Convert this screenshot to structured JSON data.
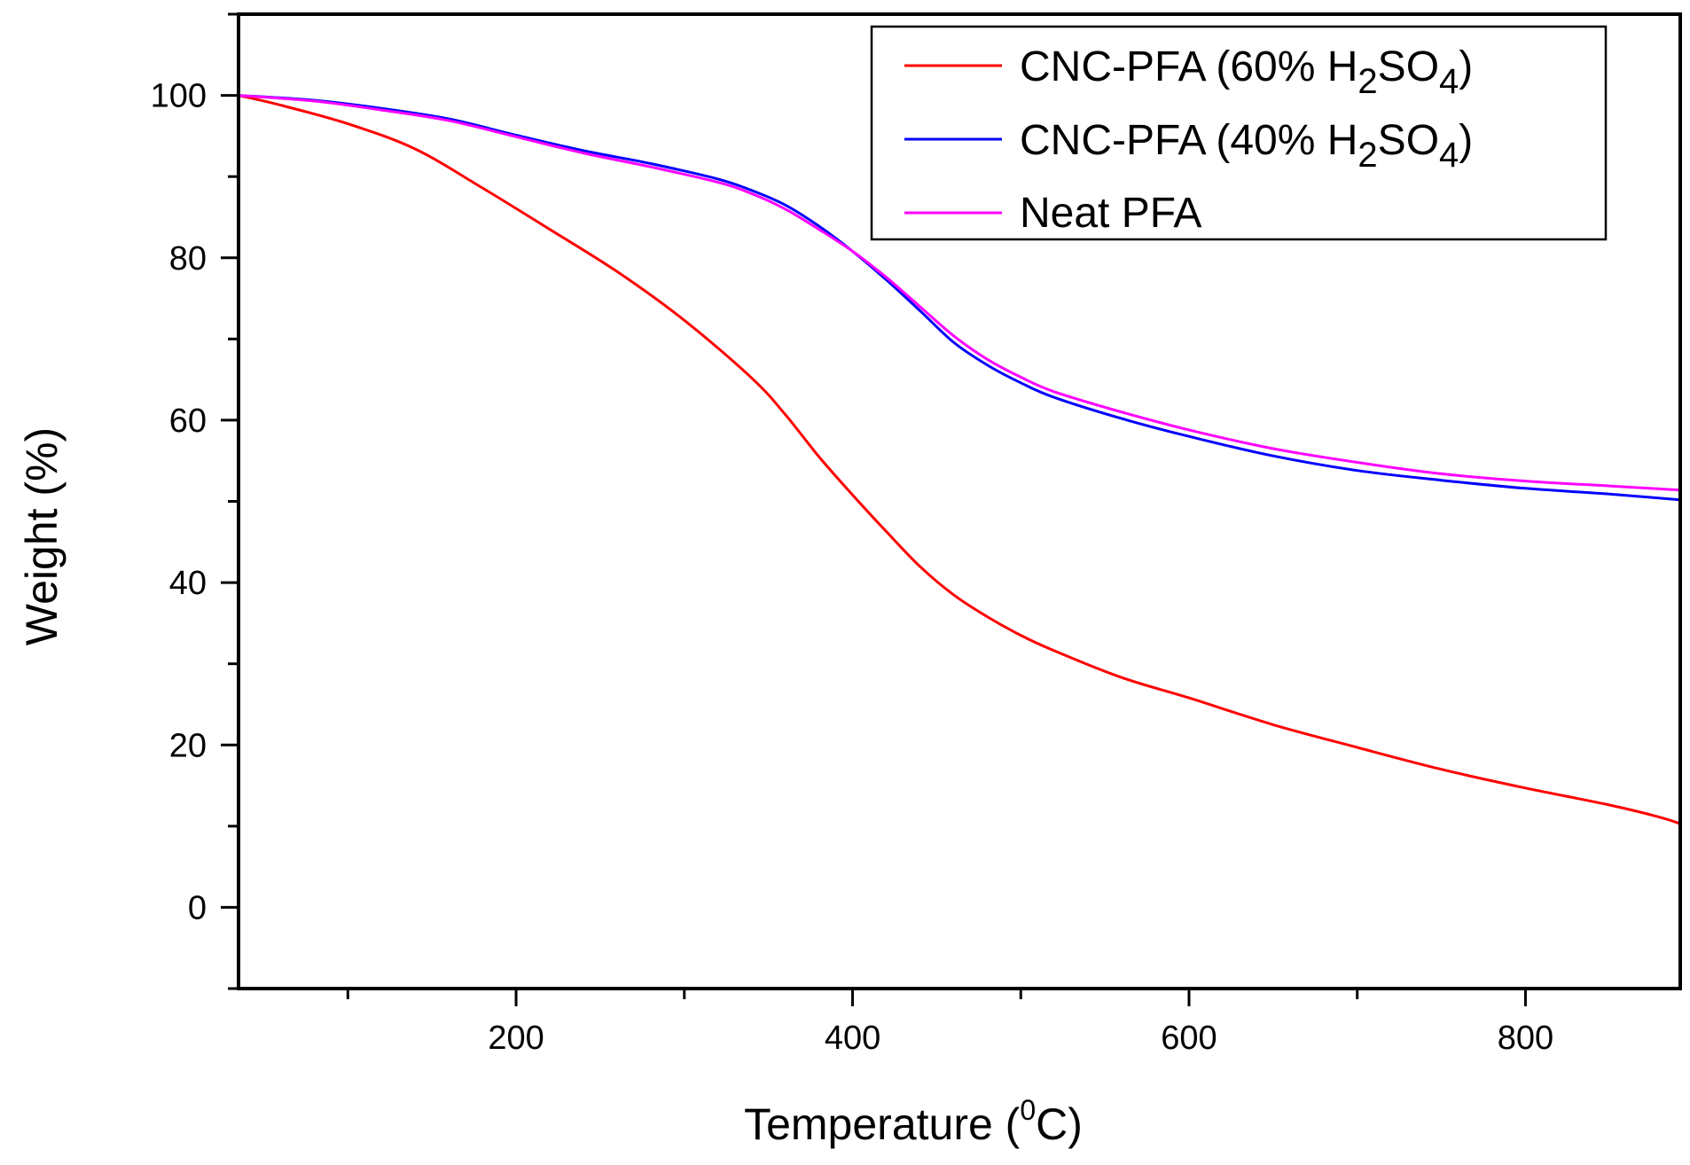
{
  "chart_data": {
    "type": "line",
    "title": "",
    "xlabel": {
      "main": "Temperature (",
      "sup": "0",
      "tail": "C)"
    },
    "ylabel": "Weight (%)",
    "xlim": [
      35,
      892
    ],
    "ylim": [
      -10,
      110
    ],
    "xticks": [
      200,
      400,
      600,
      800
    ],
    "yticks": [
      0,
      20,
      40,
      60,
      80,
      100
    ],
    "x_minor_step": 100,
    "y_minor_step": 10,
    "grid": false,
    "legend_position": "top-right",
    "series": [
      {
        "name": "CNC-PFA (60% H2SO4)",
        "label": {
          "main": "CNC-PFA (60% H",
          "sub1": "2",
          "mid": "SO",
          "sub2": "4",
          "tail": ")"
        },
        "color": "#ff0000",
        "x": [
          35,
          60,
          100,
          140,
          180,
          220,
          260,
          300,
          340,
          360,
          380,
          400,
          420,
          440,
          460,
          480,
          500,
          520,
          560,
          600,
          650,
          700,
          750,
          800,
          850,
          880,
          892
        ],
        "y": [
          100,
          98.8,
          96.5,
          93.4,
          88.6,
          83.5,
          78.3,
          72.3,
          65.2,
          60.7,
          55.5,
          50.8,
          46.3,
          42,
          38.5,
          35.8,
          33.5,
          31.6,
          28.3,
          25.8,
          22.5,
          19.7,
          17,
          14.7,
          12.6,
          11.1,
          10.3
        ]
      },
      {
        "name": "CNC-PFA (40% H2SO4)",
        "label": {
          "main": "CNC-PFA (40% H",
          "sub1": "2",
          "mid": "SO",
          "sub2": "4",
          "tail": ")"
        },
        "color": "#0000ff",
        "x": [
          35,
          80,
          120,
          160,
          200,
          240,
          280,
          320,
          340,
          360,
          380,
          400,
          420,
          440,
          460,
          480,
          500,
          520,
          560,
          600,
          650,
          700,
          750,
          800,
          850,
          892
        ],
        "y": [
          100,
          99.4,
          98.4,
          97.1,
          95.1,
          93.2,
          91.6,
          89.7,
          88.3,
          86.5,
          83.9,
          80.8,
          77.3,
          73.5,
          69.6,
          66.8,
          64.6,
          62.8,
          60.2,
          58,
          55.6,
          53.8,
          52.6,
          51.6,
          50.9,
          50.2
        ]
      },
      {
        "name": "Neat PFA",
        "label": {
          "main": "Neat PFA",
          "sub1": "",
          "mid": "",
          "sub2": "",
          "tail": ""
        },
        "color": "#ff00ff",
        "x": [
          35,
          80,
          120,
          160,
          200,
          240,
          280,
          320,
          340,
          360,
          380,
          400,
          420,
          440,
          460,
          480,
          500,
          520,
          560,
          600,
          650,
          700,
          750,
          800,
          850,
          892
        ],
        "y": [
          100,
          99.3,
          98.2,
          96.9,
          94.9,
          92.9,
          91.2,
          89.3,
          87.9,
          86,
          83.5,
          80.8,
          77.6,
          74,
          70.4,
          67.5,
          65.3,
          63.5,
          61,
          58.8,
          56.5,
          54.8,
          53.4,
          52.5,
          51.9,
          51.4
        ]
      }
    ]
  }
}
